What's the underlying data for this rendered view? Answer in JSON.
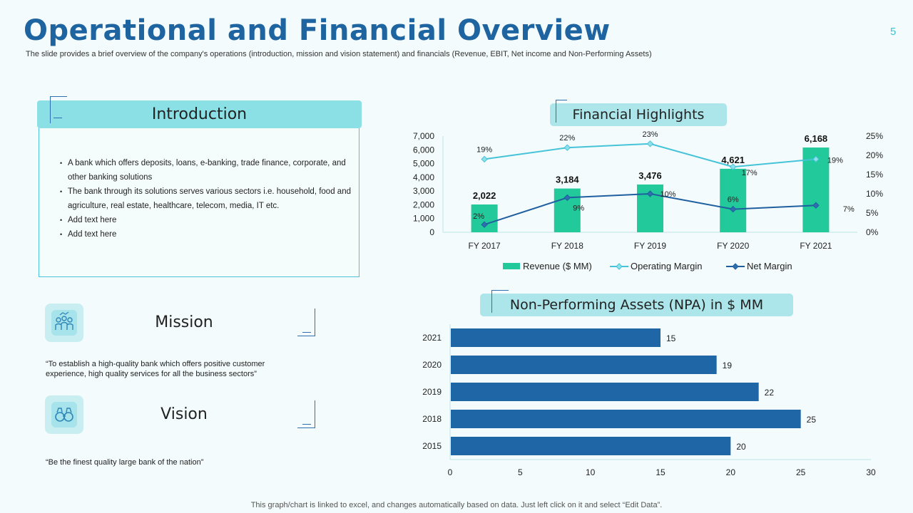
{
  "slide": {
    "title": "Operational and Financial Overview",
    "subtitle": "The slide provides a brief overview of the company's operations (introduction, mission and vision statement) and financials (Revenue, EBIT, Net income and Non-Performing Assets)",
    "page_number": "5",
    "footer": "This graph/chart is linked to excel,  and changes automatically based on data. Just left click on it and select “Edit Data”."
  },
  "introduction": {
    "title": "Introduction",
    "bullets": [
      "A bank which offers deposits, loans, e-banking, trade finance, corporate, and other banking solutions",
      "The bank through its solutions serves various sectors i.e. household, food and agriculture, real estate, healthcare, telecom, media,  IT etc.",
      "Add text here",
      "Add text here"
    ]
  },
  "mission": {
    "title": "Mission",
    "text": "“To establish  a high-quality bank which offers positive customer experience, high quality services  for all  the business sectors”",
    "icon": "people-chart-icon"
  },
  "vision": {
    "title": "Vision",
    "text": "“Be the finest quality  large  bank of the nation”",
    "icon": "binoculars-icon"
  },
  "financial_highlights": {
    "title": "Financial Highlights"
  },
  "npa": {
    "title": "Non-Performing Assets (NPA) in $ MM"
  },
  "chart_data": [
    {
      "type": "bar",
      "title": "Financial Highlights",
      "categories": [
        "FY 2017",
        "FY 2018",
        "FY 2019",
        "FY 2020",
        "FY 2021"
      ],
      "series": [
        {
          "name": "Revenue ($ MM)",
          "type": "bar",
          "axis": "left",
          "values": [
            2022,
            3184,
            3476,
            4621,
            6168
          ],
          "labels": [
            "2,022",
            "3,184",
            "3,476",
            "4,621",
            "6,168"
          ],
          "color": "#22c99a"
        },
        {
          "name": "Operating Margin",
          "type": "line",
          "axis": "right",
          "values": [
            19,
            22,
            23,
            17,
            19
          ],
          "labels": [
            "19%",
            "22%",
            "23%",
            "17%",
            "19%"
          ],
          "color": "#45c3d8"
        },
        {
          "name": "Net Margin",
          "type": "line",
          "axis": "right",
          "values": [
            2,
            9,
            10,
            6,
            7
          ],
          "labels": [
            "2%",
            "9%",
            "10%",
            "6%",
            "7%"
          ],
          "color": "#1f5fa0"
        }
      ],
      "ylim": [
        0,
        7000
      ],
      "y_ticks": [
        "0",
        "1,000",
        "2,000",
        "3,000",
        "4,000",
        "5,000",
        "6,000",
        "7,000"
      ],
      "y2lim": [
        0,
        25
      ],
      "y2_ticks": [
        "0%",
        "5%",
        "10%",
        "15%",
        "20%",
        "25%"
      ],
      "legend": "bottom"
    },
    {
      "type": "bar",
      "orientation": "horizontal",
      "title": "Non-Performing Assets (NPA) in $ MM",
      "categories": [
        "2021",
        "2020",
        "2019",
        "2018",
        "2015"
      ],
      "values": [
        15,
        19,
        22,
        25,
        20
      ],
      "xlim": [
        0,
        30
      ],
      "x_ticks": [
        "0",
        "5",
        "10",
        "15",
        "20",
        "25",
        "30"
      ],
      "color": "#1f66a6"
    }
  ]
}
